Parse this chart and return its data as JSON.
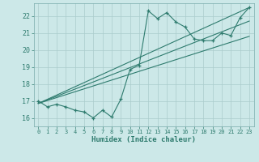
{
  "xlabel": "Humidex (Indice chaleur)",
  "background_color": "#cce8e8",
  "grid_color": "#aacccc",
  "line_color": "#2e7b6e",
  "xlim": [
    -0.5,
    23.5
  ],
  "ylim": [
    15.5,
    22.75
  ],
  "yticks": [
    16,
    17,
    18,
    19,
    20,
    21,
    22
  ],
  "xticks": [
    0,
    1,
    2,
    3,
    4,
    5,
    6,
    7,
    8,
    9,
    10,
    11,
    12,
    13,
    14,
    15,
    16,
    17,
    18,
    19,
    20,
    21,
    22,
    23
  ],
  "main_series": [
    [
      0,
      17.0
    ],
    [
      1,
      16.65
    ],
    [
      2,
      16.8
    ],
    [
      3,
      16.65
    ],
    [
      4,
      16.45
    ],
    [
      5,
      16.35
    ],
    [
      6,
      16.0
    ],
    [
      7,
      16.45
    ],
    [
      8,
      16.05
    ],
    [
      9,
      17.1
    ],
    [
      10,
      18.85
    ],
    [
      11,
      19.1
    ],
    [
      12,
      22.3
    ],
    [
      13,
      21.85
    ],
    [
      14,
      22.2
    ],
    [
      15,
      21.65
    ],
    [
      16,
      21.35
    ],
    [
      17,
      20.65
    ],
    [
      18,
      20.55
    ],
    [
      19,
      20.55
    ],
    [
      20,
      21.0
    ],
    [
      21,
      20.85
    ],
    [
      22,
      21.9
    ],
    [
      23,
      22.5
    ]
  ],
  "linear_series": [
    [
      [
        0,
        16.85
      ],
      [
        23,
        22.5
      ]
    ],
    [
      [
        0,
        16.85
      ],
      [
        23,
        21.7
      ]
    ],
    [
      [
        0,
        16.85
      ],
      [
        23,
        20.8
      ]
    ]
  ]
}
